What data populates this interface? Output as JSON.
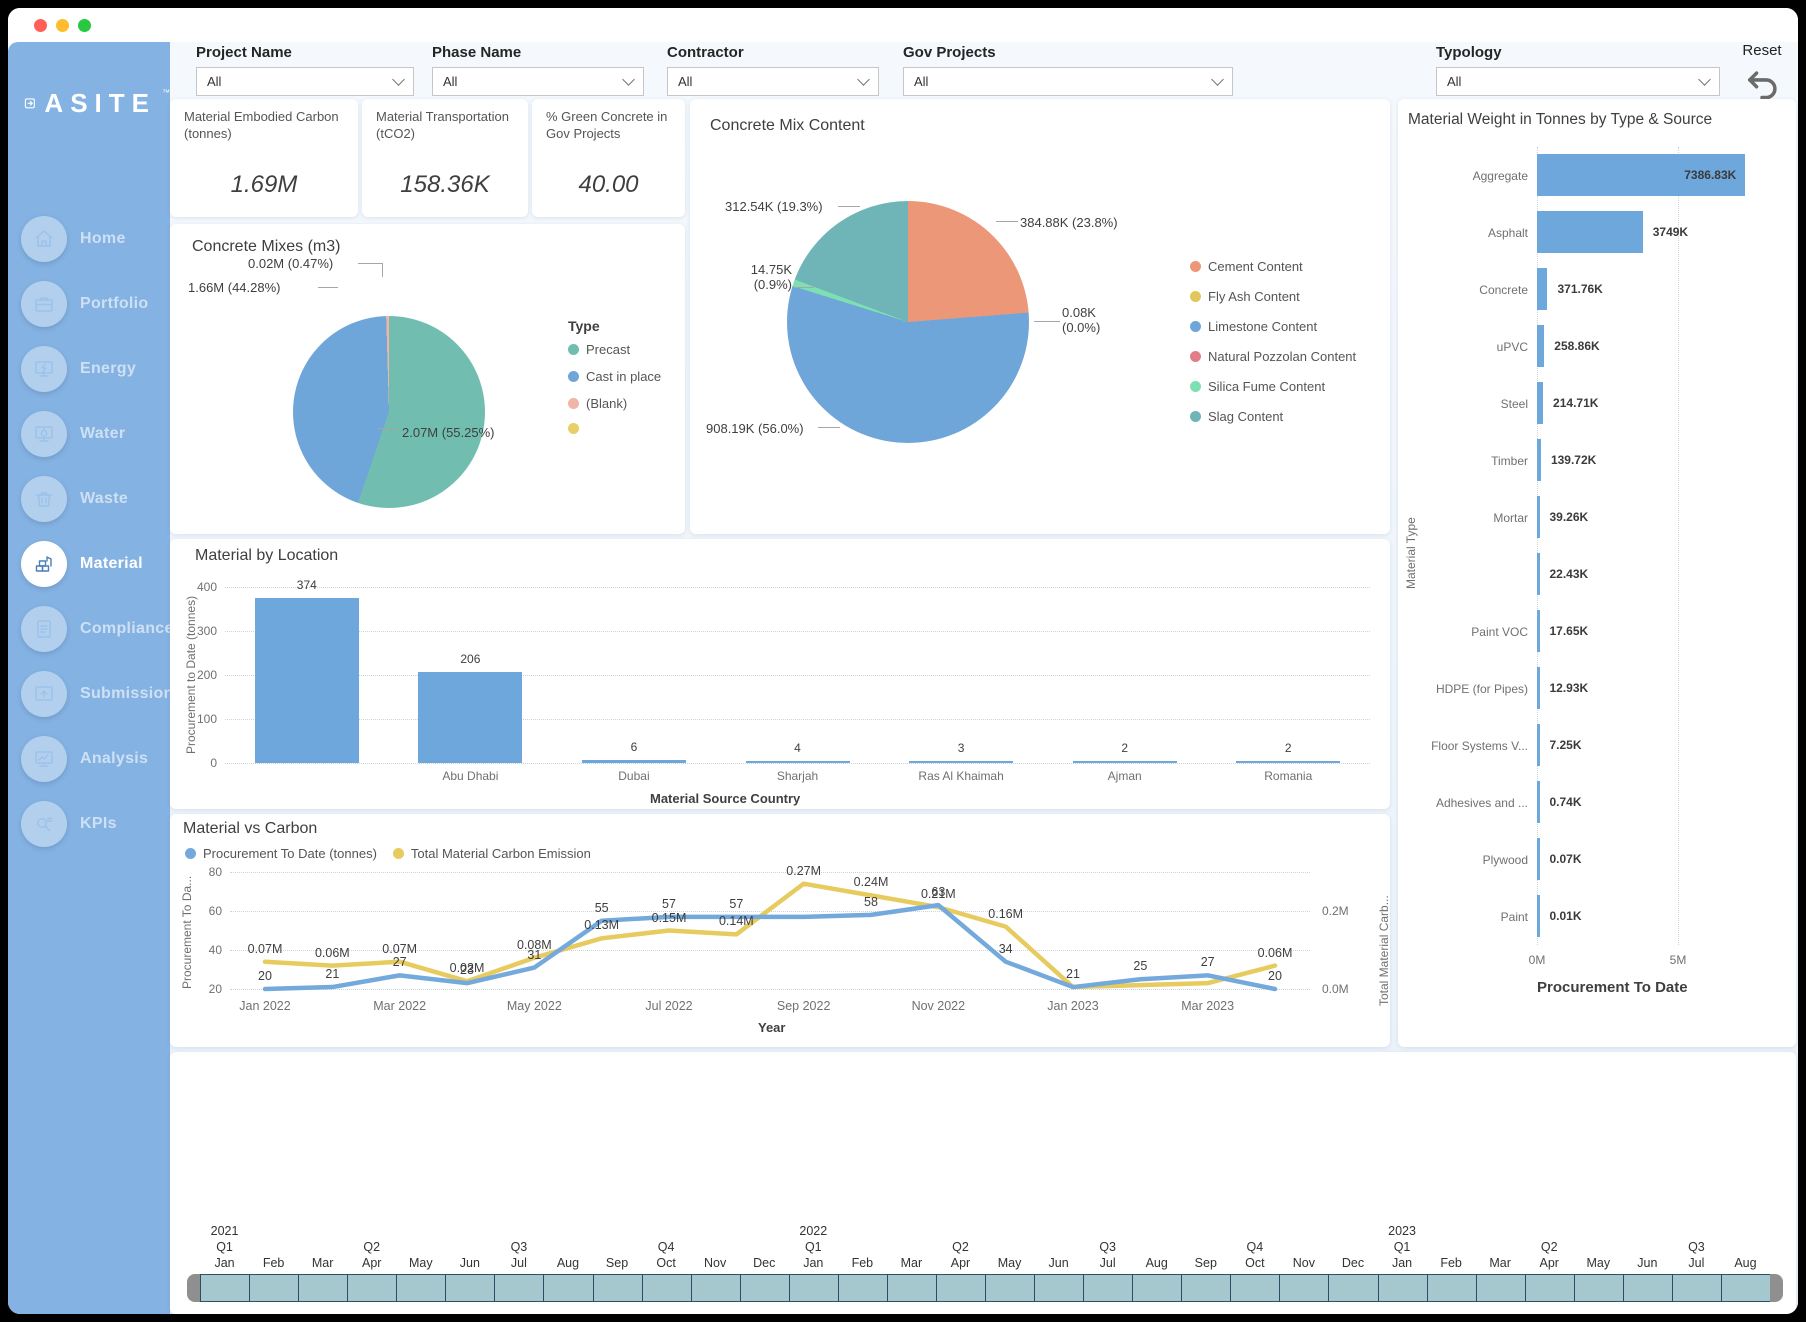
{
  "sidebar": {
    "brand": "ASITE",
    "tm": "™",
    "items": [
      {
        "label": "Home",
        "icon": "home",
        "active": false
      },
      {
        "label": "Portfolio",
        "icon": "portfolio",
        "active": false
      },
      {
        "label": "Energy",
        "icon": "energy",
        "active": false
      },
      {
        "label": "Water",
        "icon": "water",
        "active": false
      },
      {
        "label": "Waste",
        "icon": "waste",
        "active": false
      },
      {
        "label": "Material",
        "icon": "material",
        "active": true
      },
      {
        "label": "Compliance",
        "icon": "compliance",
        "active": false
      },
      {
        "label": "Submissions",
        "icon": "submissions",
        "active": false
      },
      {
        "label": "Analysis",
        "icon": "analysis",
        "active": false
      },
      {
        "label": "KPIs",
        "icon": "kpis",
        "active": false
      }
    ]
  },
  "filters": {
    "reset_label": "Reset",
    "items": [
      {
        "label": "Project Name",
        "value": "All"
      },
      {
        "label": "Phase Name",
        "value": "All"
      },
      {
        "label": "Contractor",
        "value": "All"
      },
      {
        "label": "Gov Projects",
        "value": "All"
      },
      {
        "label": "Typology",
        "value": "All"
      }
    ]
  },
  "kpis": [
    {
      "label": "Material Embodied Carbon (tonnes)",
      "value": "1.69M"
    },
    {
      "label": "Material Transportation (tCO2)",
      "value": "158.36K"
    },
    {
      "label": "% Green Concrete in Gov Projects",
      "value": "40.00"
    }
  ],
  "chart_data": [
    {
      "id": "concrete_mixes",
      "type": "pie",
      "title": "Concrete Mixes (m3)",
      "legend_title": "Type",
      "slices": [
        {
          "label": "Precast",
          "value": 2.07,
          "data_label": "2.07M (55.25%)",
          "color": "#71beb1"
        },
        {
          "label": "Cast in place",
          "value": 1.66,
          "data_label": "1.66M (44.28%)",
          "color": "#6fa6d9"
        },
        {
          "label": "(Blank)",
          "value": 0.0176,
          "data_label": "0.02M (0.47%)",
          "color": "#f0b5a6"
        },
        {
          "label": "",
          "value": 0,
          "color": "#e8cf6a"
        }
      ]
    },
    {
      "id": "concrete_mix_content",
      "type": "pie",
      "title": "Concrete Mix Content",
      "slices": [
        {
          "label": "Cement Content",
          "value": 384.88,
          "data_label": "384.88K (23.8%)",
          "color": "#ec9878"
        },
        {
          "label": "Fly Ash Content",
          "value": 0.08,
          "data_label": "0.08K",
          "data_label2": "(0.0%)",
          "color": "#e0c75a"
        },
        {
          "label": "Limestone Content",
          "value": 908.19,
          "data_label": "908.19K (56.0%)",
          "color": "#6fa6d9"
        },
        {
          "label": "Natural Pozzolan Content",
          "value": 0,
          "color": "#e17d88"
        },
        {
          "label": "Silica Fume Content",
          "value": 14.75,
          "data_label": "14.75K",
          "data_label2": "(0.9%)",
          "color": "#7ce0b3"
        },
        {
          "label": "Slag Content",
          "value": 312.54,
          "data_label": "312.54K (19.3%)",
          "color": "#6fb5b8"
        }
      ]
    },
    {
      "id": "material_by_location",
      "type": "bar",
      "title": "Material by Location",
      "xlabel": "Material Source Country",
      "ylabel": "Procurement to Date (tonnes)",
      "ylim": [
        0,
        400
      ],
      "yticks": [
        0,
        100,
        200,
        300,
        400
      ],
      "categories": [
        "",
        "Abu Dhabi",
        "Dubai",
        "Sharjah",
        "Ras Al Khaimah",
        "Ajman",
        "Romania"
      ],
      "values": [
        374,
        206,
        6,
        4,
        3,
        2,
        2
      ],
      "bar_color": "#6ea7db"
    },
    {
      "id": "material_vs_carbon",
      "type": "line",
      "title": "Material vs Carbon",
      "xlabel": "Year",
      "ylabel_left": "Procurement To Da...",
      "ylabel_right": "Total Material Carb...",
      "ylim_left": [
        20,
        80
      ],
      "yticks_left": [
        20,
        40,
        60,
        80
      ],
      "yticks_right": [
        {
          "label": "0.0M",
          "left_equiv": 20
        },
        {
          "label": "0.2M",
          "left_equiv": 60
        }
      ],
      "x": [
        "Jan 2022",
        "Feb 2022",
        "Mar 2022",
        "Apr 2022",
        "May 2022",
        "Jun 2022",
        "Jul 2022",
        "Aug 2022",
        "Sep 2022",
        "Oct 2022",
        "Nov 2022",
        "Dec 2022",
        "Jan 2023",
        "Feb 2023",
        "Mar 2023",
        "Apr 2023"
      ],
      "x_axis_labels": [
        "Jan 2022",
        "Mar 2022",
        "May 2022",
        "Jul 2022",
        "Sep 2022",
        "Nov 2022",
        "Jan 2023",
        "Mar 2023"
      ],
      "series": [
        {
          "name": "Procurement To Date (tonnes)",
          "color": "#74a9dc",
          "values": [
            20,
            21,
            27,
            23,
            31,
            55,
            57,
            57,
            57,
            58,
            63,
            34,
            21,
            25,
            27,
            20
          ],
          "labels": [
            "20",
            "21",
            "27",
            "23",
            "31",
            "55",
            "57",
            "57",
            null,
            "58",
            "63",
            "34",
            "21",
            "25",
            "27",
            "20"
          ]
        },
        {
          "name": "Total Material Carbon Emission",
          "color": "#e7cb5e",
          "values_M": [
            0.07,
            0.06,
            0.07,
            0.02,
            0.08,
            0.13,
            0.15,
            0.14,
            0.27,
            0.24,
            0.21,
            0.16,
            0.005,
            0.01,
            0.015,
            0.06
          ],
          "labels": [
            "0.07M",
            "0.06M",
            "0.07M",
            "0.02M",
            "0.08M",
            "0.13M",
            "0.15M",
            "0.14M",
            "0.27M",
            "0.24M",
            "0.21M",
            "0.16M",
            null,
            null,
            null,
            "0.06M"
          ]
        }
      ]
    },
    {
      "id": "material_weight",
      "type": "hbar",
      "title": "Material Weight in Tonnes by Type & Source",
      "xlabel": "Procurement To Date",
      "ylabel": "Material Type",
      "xticks": [
        "0M",
        "5M"
      ],
      "categories": [
        "Aggregate",
        "Asphalt",
        "Concrete",
        "uPVC",
        "Steel",
        "Timber",
        "Mortar",
        "",
        "Paint VOC",
        "HDPE (for Pipes)",
        "Floor Systems V...",
        "Adhesives and ...",
        "Plywood",
        "Paint"
      ],
      "values_K": [
        7386.83,
        3749,
        371.76,
        258.86,
        214.71,
        139.72,
        39.26,
        22.43,
        17.65,
        12.93,
        7.25,
        0.74,
        0.07,
        0.01
      ],
      "labels": [
        "7386.83K",
        "3749K",
        "371.76K",
        "258.86K",
        "214.71K",
        "139.72K",
        "39.26K",
        "22.43K",
        "17.65K",
        "12.93K",
        "7.25K",
        "0.74K",
        "0.07K",
        "0.01K"
      ],
      "bar_color": "#6ea7db"
    }
  ],
  "timeline": {
    "months": [
      {
        "m": "Jan",
        "q": "Q1",
        "y": "2021"
      },
      {
        "m": "Feb"
      },
      {
        "m": "Mar"
      },
      {
        "m": "Apr",
        "q": "Q2"
      },
      {
        "m": "May"
      },
      {
        "m": "Jun"
      },
      {
        "m": "Jul",
        "q": "Q3"
      },
      {
        "m": "Aug"
      },
      {
        "m": "Sep"
      },
      {
        "m": "Oct",
        "q": "Q4"
      },
      {
        "m": "Nov"
      },
      {
        "m": "Dec"
      },
      {
        "m": "Jan",
        "q": "Q1",
        "y": "2022"
      },
      {
        "m": "Feb"
      },
      {
        "m": "Mar"
      },
      {
        "m": "Apr",
        "q": "Q2"
      },
      {
        "m": "May"
      },
      {
        "m": "Jun"
      },
      {
        "m": "Jul",
        "q": "Q3"
      },
      {
        "m": "Aug"
      },
      {
        "m": "Sep"
      },
      {
        "m": "Oct",
        "q": "Q4"
      },
      {
        "m": "Nov"
      },
      {
        "m": "Dec"
      },
      {
        "m": "Jan",
        "q": "Q1",
        "y": "2023"
      },
      {
        "m": "Feb"
      },
      {
        "m": "Mar"
      },
      {
        "m": "Apr",
        "q": "Q2"
      },
      {
        "m": "May"
      },
      {
        "m": "Jun"
      },
      {
        "m": "Jul",
        "q": "Q3"
      },
      {
        "m": "Aug"
      }
    ]
  }
}
